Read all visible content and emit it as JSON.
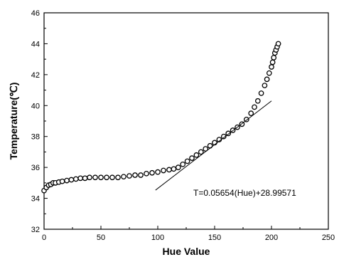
{
  "chart_data": {
    "type": "scatter",
    "xlabel": "Hue Value",
    "ylabel": "Temperature(℃)",
    "xlim": [
      0,
      250
    ],
    "ylim": [
      32,
      46
    ],
    "xticks": [
      0,
      50,
      100,
      150,
      200,
      250
    ],
    "yticks": [
      32,
      34,
      36,
      38,
      40,
      42,
      44,
      46
    ],
    "xtick_labels": [
      "0",
      "50",
      "100",
      "150",
      "200",
      "250"
    ],
    "ytick_labels": [
      "32",
      "34",
      "36",
      "38",
      "40",
      "42",
      "44",
      "46"
    ],
    "grid": false,
    "series": [
      {
        "marker": "open-circle",
        "x": [
          0,
          2,
          4,
          6,
          8,
          10,
          13,
          16,
          20,
          24,
          28,
          32,
          36,
          40,
          45,
          50,
          55,
          60,
          65,
          70,
          75,
          80,
          85,
          90,
          95,
          100,
          105,
          110,
          114,
          118,
          122,
          126,
          130,
          134,
          138,
          142,
          146,
          150,
          154,
          158,
          162,
          166,
          170,
          174,
          178,
          182,
          185,
          188,
          191,
          194,
          196,
          198,
          200,
          201,
          202,
          203,
          204,
          205,
          206
        ],
        "y": [
          34.5,
          34.7,
          34.85,
          34.9,
          35.0,
          35.0,
          35.05,
          35.1,
          35.15,
          35.2,
          35.25,
          35.3,
          35.3,
          35.35,
          35.35,
          35.35,
          35.35,
          35.35,
          35.35,
          35.4,
          35.45,
          35.5,
          35.5,
          35.6,
          35.65,
          35.7,
          35.8,
          35.85,
          35.9,
          36.0,
          36.2,
          36.4,
          36.6,
          36.8,
          37.0,
          37.2,
          37.4,
          37.6,
          37.8,
          38.0,
          38.2,
          38.4,
          38.6,
          38.8,
          39.1,
          39.5,
          39.9,
          40.3,
          40.8,
          41.3,
          41.7,
          42.1,
          42.5,
          42.8,
          43.1,
          43.4,
          43.6,
          43.8,
          44.0
        ]
      }
    ],
    "fit_line": {
      "x": [
        98,
        200
      ],
      "y": [
        34.53,
        40.3
      ]
    },
    "annotation": "T=0.05654(Hue)+28.99571"
  }
}
